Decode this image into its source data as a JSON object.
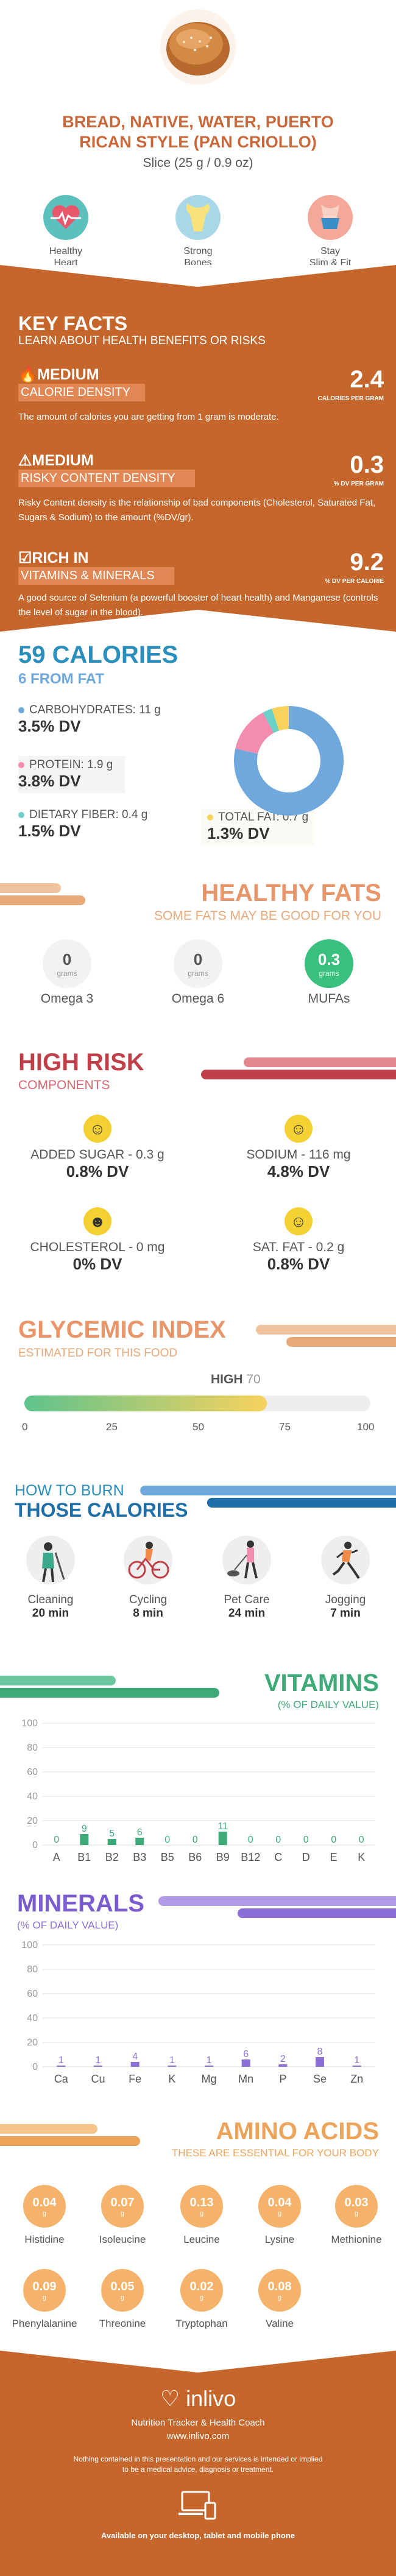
{
  "header": {
    "title_line1": "BREAD, NATIVE, WATER, PUERTO",
    "title_line2": "RICAN STYLE (PAN CRIOLLO)",
    "serving": "Slice (25 g / 0.9 oz)",
    "benefits": [
      {
        "icon": "heart-icon",
        "label_line1": "Healthy",
        "label_line2": "Heart"
      },
      {
        "icon": "bone-icon",
        "label_line1": "Strong",
        "label_line2": "Bones"
      },
      {
        "icon": "body-icon",
        "label_line1": "Stay",
        "label_line2": "Slim & Fit"
      }
    ]
  },
  "key_facts": {
    "title": "KEY FACTS",
    "subtitle": "LEARN ABOUT HEALTH BENEFITS OR RISKS",
    "facts": [
      {
        "level": "MEDIUM",
        "name": "CALORIE DENSITY",
        "value": "2.4",
        "unit": "CALORIES PER GRAM",
        "desc": "The amount of calories you are getting from 1 gram is moderate."
      },
      {
        "level": "MEDIUM",
        "name": "RISKY CONTENT DENSITY",
        "value": "0.3",
        "unit": "% DV PER GRAM",
        "desc": "Risky Content density is the relationship of bad components (Cholesterol, Saturated Fat, Sugars & Sodium) to the amount (%DV/gr)."
      },
      {
        "level": "RICH IN",
        "name": "VITAMINS & MINERALS",
        "value": "9.2",
        "unit": "% DV PER CALORIE",
        "desc": "A good source of Selenium (a powerful booster of heart health) and Manganese (controls the level of sugar in the blood)."
      }
    ]
  },
  "calories": {
    "title": "59 CALORIES",
    "subtitle": "6 FROM FAT",
    "items": [
      {
        "label": "CARBOHYDRATES: 11 g",
        "dv": "3.5% DV",
        "color": "#6fa8dc"
      },
      {
        "label": "PROTEIN: 1.9 g",
        "dv": "3.8% DV",
        "color": "#f28cb1"
      },
      {
        "label": "DIETARY FIBER: 0.4 g",
        "dv": "1.5% DV",
        "color": "#6ad0c8"
      },
      {
        "label": "TOTAL FAT: 0.7 g",
        "dv": "1.3% DV",
        "color": "#f7d35e"
      }
    ]
  },
  "chart_data": {
    "type": "pie",
    "categories": [
      "Carbohydrates",
      "Protein",
      "Dietary fiber",
      "Total fat"
    ],
    "values": [
      11,
      1.9,
      0.4,
      0.7
    ],
    "colors": [
      "#6fa8dc",
      "#f28cb1",
      "#6ad0c8",
      "#f7d35e"
    ]
  },
  "healthy_fats": {
    "title": "HEALTHY FATS",
    "subtitle": "SOME FATS MAY BE GOOD FOR YOU",
    "items": [
      {
        "value": "0",
        "unit": "grams",
        "name": "Omega 3"
      },
      {
        "value": "0",
        "unit": "grams",
        "name": "Omega 6"
      },
      {
        "value": "0.3",
        "unit": "grams",
        "name": "MUFAs"
      }
    ]
  },
  "high_risk": {
    "title": "HIGH RISK",
    "subtitle": "COMPONENTS",
    "items": [
      {
        "label": "ADDED SUGAR - 0.3 g",
        "dv": "0.8% DV"
      },
      {
        "label": "SODIUM - 116 mg",
        "dv": "4.8% DV"
      },
      {
        "label": "CHOLESTEROL - 0 mg",
        "dv": "0% DV"
      },
      {
        "label": "SAT. FAT - 0.2 g",
        "dv": "0.8% DV"
      }
    ]
  },
  "glycemic": {
    "title": "GLYCEMIC INDEX",
    "subtitle": "ESTIMATED FOR THIS FOOD",
    "level": "HIGH",
    "value": "70",
    "value_num": 70,
    "ticks": [
      "0",
      "25",
      "50",
      "75",
      "100"
    ]
  },
  "burn": {
    "title_line1": "HOW TO BURN",
    "title_line2": "THOSE CALORIES",
    "items": [
      {
        "icon": "cleaning-icon",
        "name": "Cleaning",
        "time": "20 min"
      },
      {
        "icon": "cycling-icon",
        "name": "Cycling",
        "time": "8 min"
      },
      {
        "icon": "pet-care-icon",
        "name": "Pet Care",
        "time": "24 min"
      },
      {
        "icon": "jogging-icon",
        "name": "Jogging",
        "time": "7 min"
      }
    ]
  },
  "vitamins": {
    "title": "VITAMINS",
    "subtitle": "(% OF DAILY VALUE)",
    "y_ticks": [
      "100",
      "80",
      "60",
      "40",
      "20",
      "0"
    ],
    "categories": [
      "A",
      "B1",
      "B2",
      "B3",
      "B5",
      "B6",
      "B9",
      "B12",
      "C",
      "D",
      "E",
      "K"
    ],
    "values": [
      0,
      9,
      5,
      6,
      0,
      0,
      11,
      0,
      0,
      0,
      0,
      0
    ],
    "labels": [
      "0",
      "9",
      "5",
      "6",
      "0",
      "0",
      "11",
      "0",
      "0",
      "0",
      "0",
      "0"
    ],
    "color": "#3eaa78"
  },
  "minerals": {
    "title": "MINERALS",
    "subtitle": "(% OF DAILY VALUE)",
    "y_ticks": [
      "100",
      "80",
      "60",
      "40",
      "20",
      "0"
    ],
    "categories": [
      "Ca",
      "Cu",
      "Fe",
      "K",
      "Mg",
      "Mn",
      "P",
      "Se",
      "Zn"
    ],
    "values": [
      1,
      1,
      4,
      1,
      1,
      6,
      2,
      8,
      1
    ],
    "labels": [
      "1",
      "1",
      "4",
      "1",
      "1",
      "6",
      "2",
      "8",
      "1"
    ],
    "color": "#8b6fd6"
  },
  "amino": {
    "title": "AMINO ACIDS",
    "subtitle": "THESE ARE ESSENTIAL FOR YOUR BODY",
    "unit": "g",
    "items": [
      {
        "value": "0.04",
        "name": "Histidine"
      },
      {
        "value": "0.07",
        "name": "Isoleucine"
      },
      {
        "value": "0.13",
        "name": "Leucine"
      },
      {
        "value": "0.04",
        "name": "Lysine"
      },
      {
        "value": "0.03",
        "name": "Methionine"
      },
      {
        "value": "0.09",
        "name": "Phenylalanine"
      },
      {
        "value": "0.05",
        "name": "Threonine"
      },
      {
        "value": "0.02",
        "name": "Tryptophan"
      },
      {
        "value": "0.08",
        "name": "Valine"
      }
    ]
  },
  "footer": {
    "brand": "inlivo",
    "tagline": "Nutrition Tracker & Health Coach",
    "url": "www.inlivo.com",
    "disclaimer_line1": "Nothing contained in this presentation and our services is intended or implied",
    "disclaimer_line2": "to be a medical advice, diagnosis or treatment.",
    "available": "Available on your desktop, tablet and mobile phone"
  }
}
